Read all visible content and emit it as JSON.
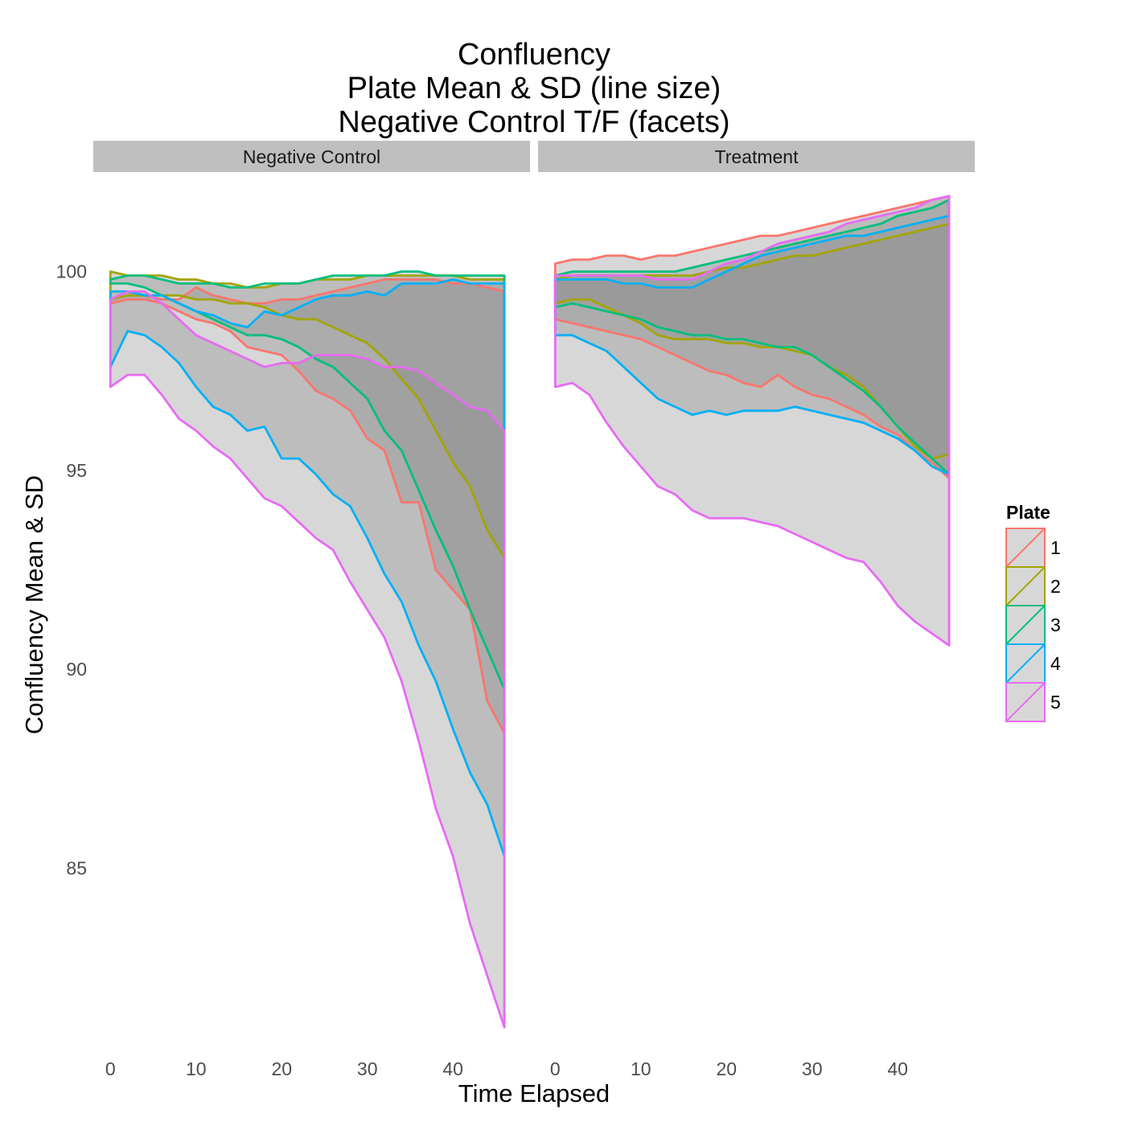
{
  "chart_data": {
    "type": "area",
    "title": [
      "Confluency",
      "Plate Mean & SD (line size)",
      "Negative Control T/F (facets)"
    ],
    "xlabel": "Time Elapsed",
    "ylabel": "Confluency Mean & SD",
    "xlim": [
      -2,
      49
    ],
    "ylim": [
      80.5,
      102.5
    ],
    "x_ticks": [
      0,
      10,
      20,
      30,
      40
    ],
    "y_ticks": [
      85,
      90,
      95,
      100
    ],
    "grid": false,
    "legend": {
      "title": "Plate",
      "position": "right",
      "entries": [
        "1",
        "2",
        "3",
        "4",
        "5"
      ]
    },
    "colors": {
      "1": "#F8766D",
      "2": "#A3A500",
      "3": "#00BF7D",
      "4": "#00B0F6",
      "5": "#E76BF3"
    },
    "x": [
      0,
      2,
      4,
      6,
      8,
      10,
      12,
      14,
      16,
      18,
      20,
      22,
      24,
      26,
      28,
      30,
      32,
      34,
      36,
      38,
      40,
      42,
      44,
      46
    ],
    "panels": [
      {
        "name": "Negative Control",
        "series": [
          {
            "name": "1",
            "upper": [
              99.3,
              99.4,
              99.4,
              99.3,
              99.3,
              99.6,
              99.4,
              99.3,
              99.2,
              99.2,
              99.3,
              99.3,
              99.4,
              99.5,
              99.6,
              99.7,
              99.8,
              99.8,
              99.8,
              99.8,
              99.7,
              99.7,
              99.6,
              99.5
            ],
            "lower": [
              99.2,
              99.3,
              99.3,
              99.2,
              99.0,
              98.8,
              98.7,
              98.5,
              98.1,
              98.0,
              97.9,
              97.5,
              97.0,
              96.8,
              96.5,
              95.8,
              95.5,
              94.2,
              94.2,
              92.5,
              92.0,
              91.5,
              89.2,
              88.4
            ]
          },
          {
            "name": "2",
            "upper": [
              100.0,
              99.9,
              99.9,
              99.9,
              99.8,
              99.8,
              99.7,
              99.7,
              99.6,
              99.6,
              99.7,
              99.7,
              99.8,
              99.8,
              99.8,
              99.9,
              99.9,
              99.9,
              99.9,
              99.9,
              99.9,
              99.8,
              99.8,
              99.8
            ],
            "lower": [
              99.3,
              99.4,
              99.4,
              99.4,
              99.4,
              99.3,
              99.3,
              99.2,
              99.2,
              99.1,
              98.9,
              98.8,
              98.8,
              98.6,
              98.4,
              98.2,
              97.8,
              97.3,
              96.8,
              96.0,
              95.2,
              94.6,
              93.5,
              92.8
            ]
          },
          {
            "name": "3",
            "upper": [
              99.8,
              99.9,
              99.9,
              99.8,
              99.7,
              99.7,
              99.7,
              99.6,
              99.6,
              99.7,
              99.7,
              99.7,
              99.8,
              99.9,
              99.9,
              99.9,
              99.9,
              100.0,
              100.0,
              99.9,
              99.9,
              99.9,
              99.9,
              99.9
            ],
            "lower": [
              99.7,
              99.7,
              99.6,
              99.4,
              99.2,
              99.0,
              98.8,
              98.6,
              98.4,
              98.4,
              98.3,
              98.1,
              97.8,
              97.6,
              97.2,
              96.8,
              96.0,
              95.5,
              94.5,
              93.5,
              92.6,
              91.5,
              90.5,
              89.5
            ]
          },
          {
            "name": "4",
            "upper": [
              99.5,
              99.5,
              99.4,
              99.4,
              99.2,
              99.0,
              98.9,
              98.7,
              98.6,
              99.0,
              98.9,
              99.1,
              99.3,
              99.4,
              99.4,
              99.5,
              99.4,
              99.7,
              99.7,
              99.7,
              99.8,
              99.7,
              99.7,
              99.7
            ],
            "lower": [
              97.6,
              98.5,
              98.4,
              98.1,
              97.7,
              97.1,
              96.6,
              96.4,
              96.0,
              96.1,
              95.3,
              95.3,
              94.9,
              94.4,
              94.1,
              93.3,
              92.4,
              91.7,
              90.6,
              89.7,
              88.5,
              87.4,
              86.6,
              85.3
            ]
          },
          {
            "name": "5",
            "upper": [
              99.3,
              99.5,
              99.5,
              99.2,
              98.8,
              98.4,
              98.2,
              98.0,
              97.8,
              97.6,
              97.7,
              97.7,
              97.9,
              97.9,
              97.9,
              97.8,
              97.6,
              97.6,
              97.5,
              97.2,
              96.9,
              96.6,
              96.5,
              96.0
            ],
            "lower": [
              97.1,
              97.4,
              97.4,
              96.9,
              96.3,
              96.0,
              95.6,
              95.3,
              94.8,
              94.3,
              94.1,
              93.7,
              93.3,
              93.0,
              92.2,
              91.5,
              90.8,
              89.7,
              88.2,
              86.5,
              85.3,
              83.6,
              82.3,
              81.0
            ]
          }
        ]
      },
      {
        "name": "Treatment",
        "series": [
          {
            "name": "1",
            "upper": [
              100.2,
              100.3,
              100.3,
              100.4,
              100.4,
              100.3,
              100.4,
              100.4,
              100.5,
              100.6,
              100.7,
              100.8,
              100.9,
              100.9,
              101.0,
              101.1,
              101.2,
              101.3,
              101.4,
              101.5,
              101.6,
              101.7,
              101.8,
              101.9
            ],
            "lower": [
              98.8,
              98.7,
              98.6,
              98.5,
              98.4,
              98.3,
              98.1,
              97.9,
              97.7,
              97.5,
              97.4,
              97.2,
              97.1,
              97.4,
              97.1,
              96.9,
              96.8,
              96.6,
              96.4,
              96.1,
              95.9,
              95.5,
              95.2,
              94.8
            ]
          },
          {
            "name": "2",
            "upper": [
              99.8,
              99.9,
              99.9,
              99.9,
              99.9,
              99.9,
              99.9,
              99.9,
              99.9,
              100.0,
              100.1,
              100.1,
              100.2,
              100.3,
              100.4,
              100.4,
              100.5,
              100.6,
              100.7,
              100.8,
              100.9,
              101.0,
              101.1,
              101.2
            ],
            "lower": [
              99.2,
              99.3,
              99.3,
              99.1,
              98.9,
              98.7,
              98.4,
              98.3,
              98.3,
              98.3,
              98.2,
              98.2,
              98.1,
              98.1,
              98.0,
              97.9,
              97.6,
              97.4,
              97.1,
              96.6,
              96.1,
              95.6,
              95.3,
              95.4
            ]
          },
          {
            "name": "3",
            "upper": [
              99.9,
              100.0,
              100.0,
              100.0,
              100.0,
              100.0,
              100.0,
              100.0,
              100.1,
              100.2,
              100.3,
              100.4,
              100.5,
              100.6,
              100.7,
              100.8,
              100.9,
              101.0,
              101.1,
              101.2,
              101.4,
              101.5,
              101.6,
              101.8
            ],
            "lower": [
              99.1,
              99.2,
              99.1,
              99.0,
              98.9,
              98.8,
              98.6,
              98.5,
              98.4,
              98.4,
              98.3,
              98.3,
              98.2,
              98.1,
              98.1,
              97.9,
              97.6,
              97.3,
              97.0,
              96.6,
              96.1,
              95.7,
              95.3,
              94.9
            ]
          },
          {
            "name": "4",
            "upper": [
              99.8,
              99.8,
              99.8,
              99.8,
              99.7,
              99.7,
              99.6,
              99.6,
              99.6,
              99.8,
              100.0,
              100.2,
              100.4,
              100.5,
              100.6,
              100.7,
              100.8,
              100.9,
              100.9,
              101.0,
              101.1,
              101.2,
              101.3,
              101.4
            ],
            "lower": [
              98.4,
              98.4,
              98.2,
              98.0,
              97.6,
              97.2,
              96.8,
              96.6,
              96.4,
              96.5,
              96.4,
              96.5,
              96.5,
              96.5,
              96.6,
              96.5,
              96.4,
              96.3,
              96.2,
              96.0,
              95.8,
              95.5,
              95.1,
              94.9
            ]
          },
          {
            "name": "5",
            "upper": [
              99.9,
              99.9,
              99.9,
              99.9,
              99.9,
              99.9,
              99.8,
              99.8,
              99.8,
              100.0,
              100.2,
              100.3,
              100.5,
              100.7,
              100.8,
              100.9,
              101.0,
              101.2,
              101.3,
              101.4,
              101.5,
              101.6,
              101.8,
              101.9
            ],
            "lower": [
              97.1,
              97.2,
              96.9,
              96.2,
              95.6,
              95.1,
              94.6,
              94.4,
              94.0,
              93.8,
              93.8,
              93.8,
              93.7,
              93.6,
              93.4,
              93.2,
              93.0,
              92.8,
              92.7,
              92.2,
              91.6,
              91.2,
              90.9,
              90.6
            ]
          }
        ]
      }
    ]
  }
}
